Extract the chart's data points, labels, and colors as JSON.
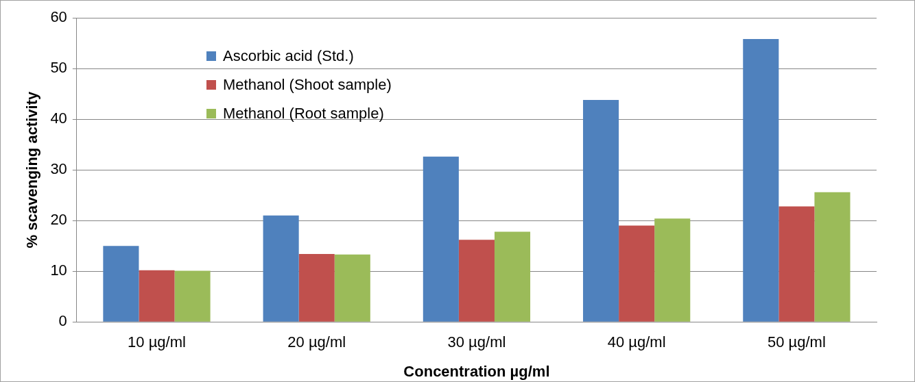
{
  "chart_data": {
    "type": "bar",
    "xlabel": "Concentration µg/ml",
    "ylabel": "% scavenging activity",
    "categories": [
      "10 µg/ml",
      "20 µg/ml",
      "30 µg/ml",
      "40 µg/ml",
      "50 µg/ml"
    ],
    "series": [
      {
        "name": "Ascorbic acid (Std.)",
        "color": "#4f81bd",
        "values": [
          15.0,
          21.0,
          32.6,
          43.8,
          55.8
        ]
      },
      {
        "name": "Methanol (Shoot sample)",
        "color": "#c0504d",
        "values": [
          10.2,
          13.4,
          16.2,
          19.0,
          22.8
        ]
      },
      {
        "name": "Methanol (Root sample)",
        "color": "#9bbb59",
        "values": [
          10.1,
          13.3,
          17.8,
          20.4,
          25.6
        ]
      }
    ],
    "ylim": [
      0,
      60
    ],
    "yticks": [
      0,
      10,
      20,
      30,
      40,
      50,
      60
    ],
    "grid": "y",
    "legend": "top left"
  }
}
